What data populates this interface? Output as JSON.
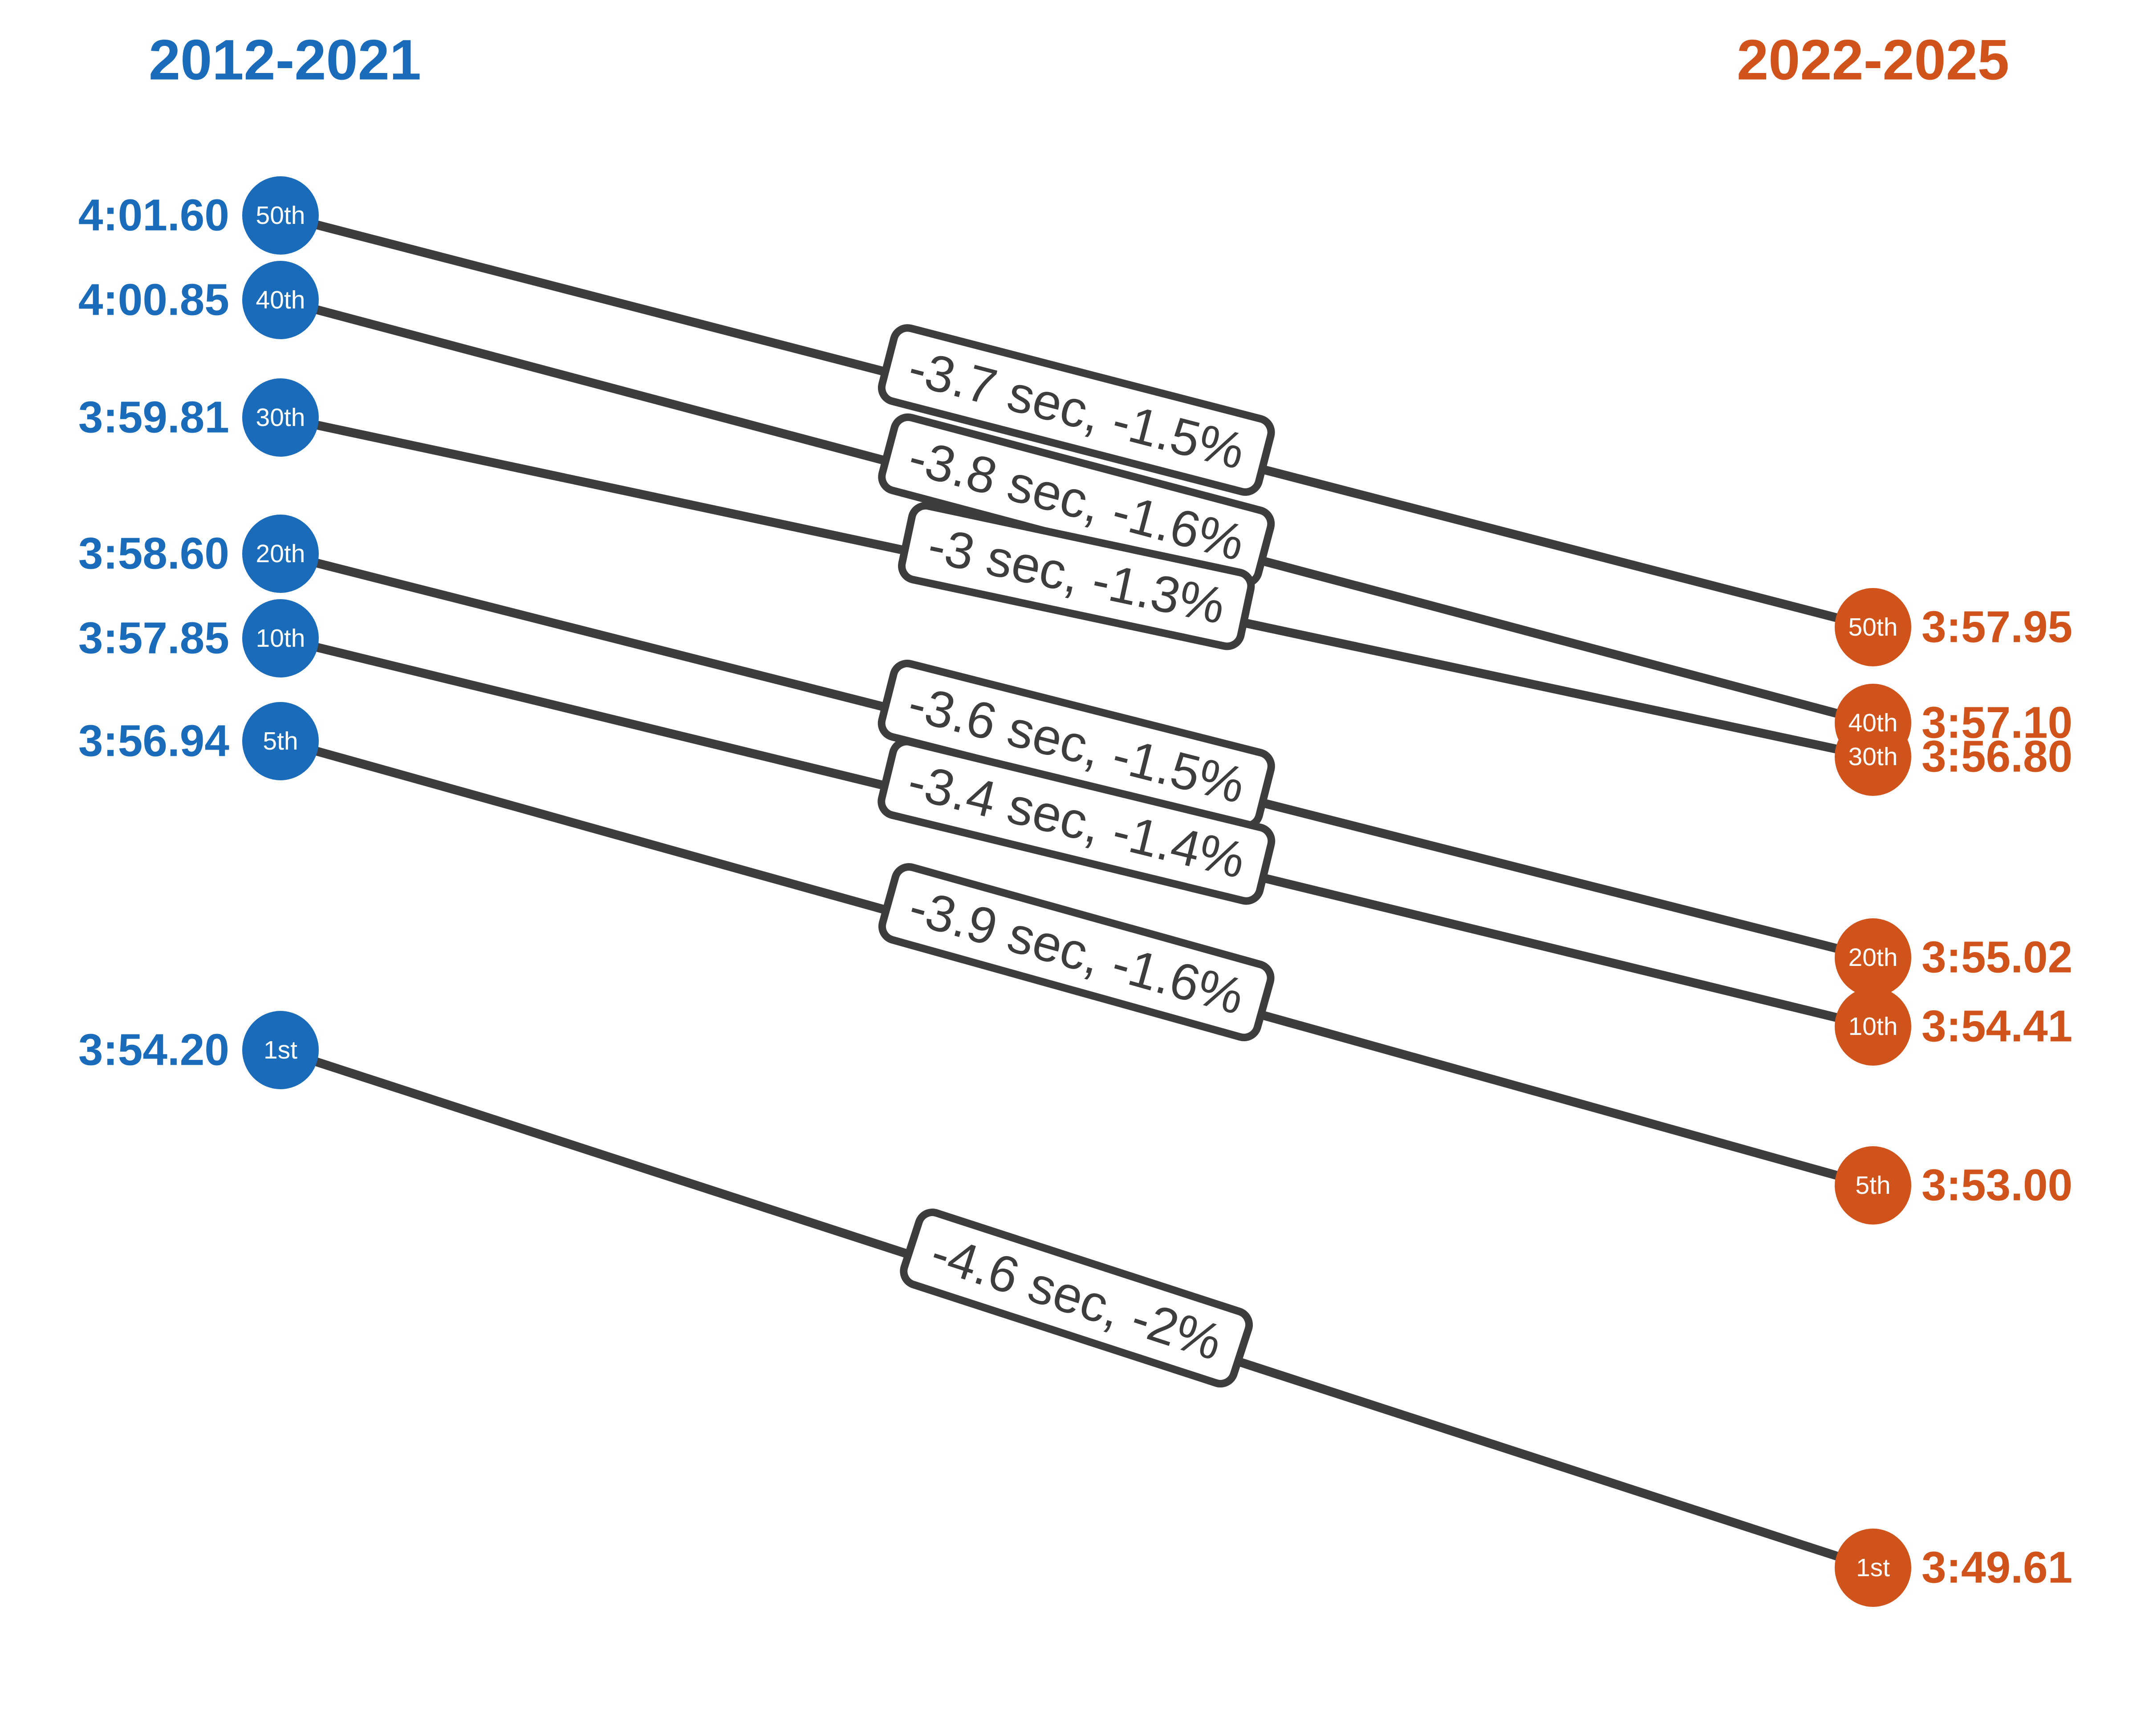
{
  "colors": {
    "blue": "#1a6bba",
    "orange": "#d1531c",
    "ink": "#3d3d3d",
    "background": "#ffffff"
  },
  "headers": {
    "left": "2012-2021",
    "right": "2022-2025"
  },
  "chart_data": {
    "type": "slopegraph",
    "left_period": "2012-2021",
    "right_period": "2022-2025",
    "value_format": "m:ss.hh",
    "rows": [
      {
        "percentile": "50th",
        "before": "4:01.60",
        "after": "3:57.95",
        "change": "-3.7 sec, -1.5%"
      },
      {
        "percentile": "40th",
        "before": "4:00.85",
        "after": "3:57.10",
        "change": "-3.8 sec, -1.6%"
      },
      {
        "percentile": "30th",
        "before": "3:59.81",
        "after": "3:56.80",
        "change": "-3 sec, -1.3%"
      },
      {
        "percentile": "20th",
        "before": "3:58.60",
        "after": "3:55.02",
        "change": "-3.6 sec, -1.5%"
      },
      {
        "percentile": "10th",
        "before": "3:57.85",
        "after": "3:54.41",
        "change": "-3.4 sec, -1.4%"
      },
      {
        "percentile": "5th",
        "before": "3:56.94",
        "after": "3:53.00",
        "change": "-3.9 sec, -1.6%"
      },
      {
        "percentile": "1st",
        "before": "3:54.20",
        "after": "3:49.61",
        "change": "-4.6 sec, -2%"
      }
    ]
  }
}
